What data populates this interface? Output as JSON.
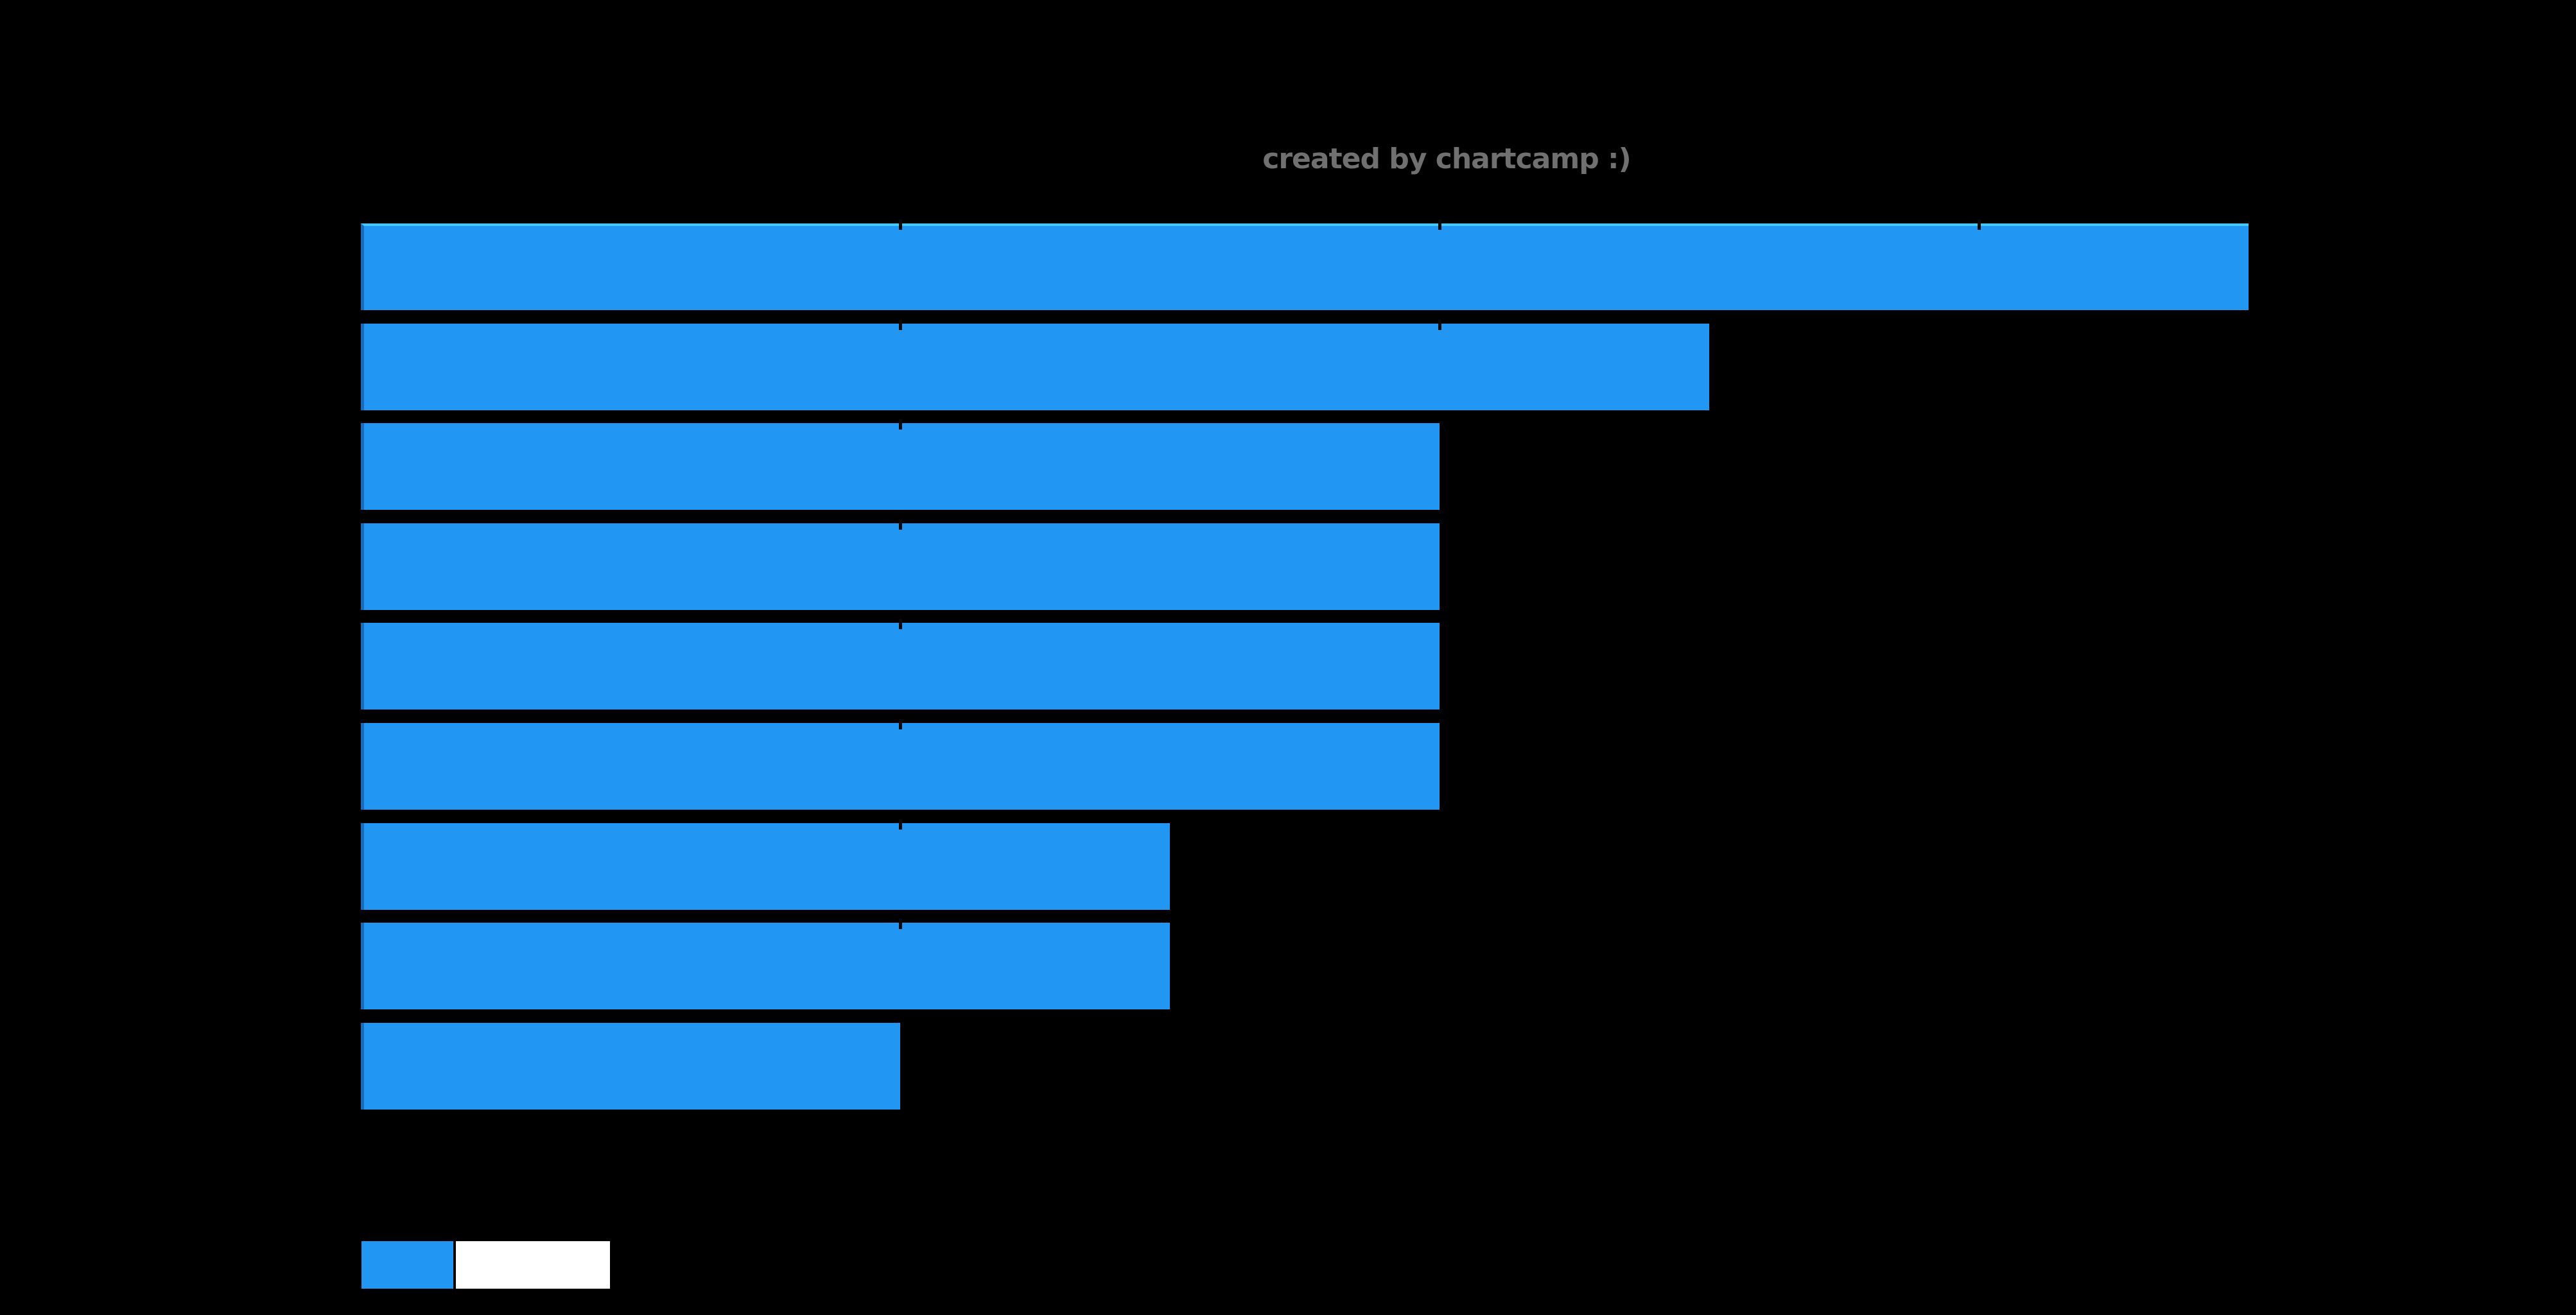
{
  "background": "#000000",
  "watermark": {
    "text": "created by chartcamp :)",
    "color": "#707070"
  },
  "chart_data": {
    "type": "bar",
    "orientation": "horizontal",
    "title": "",
    "xlabel": "",
    "ylabel": "",
    "categories": [
      "",
      "",
      "",
      "",
      "",
      "",
      "",
      "",
      ""
    ],
    "values": [
      3.5,
      2.5,
      2,
      2,
      2,
      2,
      1.5,
      1.5,
      1
    ],
    "xlim": [
      0,
      4
    ],
    "x_ticks": [
      0,
      1,
      2,
      3,
      4
    ],
    "grid": false,
    "bar_color": "#2196f3",
    "bar_edge_accent": "#45c8f5",
    "tick_color": "#0a0a0a",
    "legend_position": "bottom-left"
  },
  "legend": {
    "items": [
      {
        "swatch_color": "#2196f3"
      },
      {
        "swatch_color": "#ffffff"
      }
    ]
  }
}
